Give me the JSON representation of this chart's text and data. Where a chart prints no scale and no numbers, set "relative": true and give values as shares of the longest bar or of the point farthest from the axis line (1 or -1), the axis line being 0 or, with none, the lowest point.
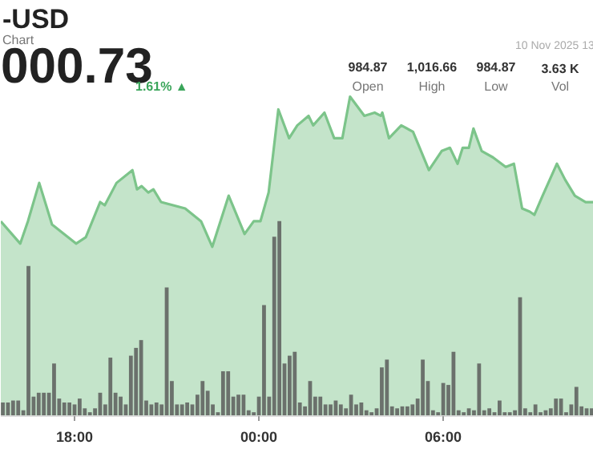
{
  "chart_data": {
    "type": "area",
    "title": "-USD",
    "subtitle": "Chart",
    "annotations": [
      "000.73",
      "1.61% ▲",
      "984.87",
      "Open",
      "1,016.66",
      "High",
      "984.87",
      "Low",
      "3.63 K",
      "Vol",
      "10 Nov 2025 13"
    ],
    "relative": true,
    "xlim": [
      "2025-11-09T15:36",
      "2025-11-10T10:54"
    ],
    "xticks": [
      {
        "value": "2025-11-09T18:00",
        "label": "18:00"
      },
      {
        "value": "2025-11-10T00:00",
        "label": "00:00"
      },
      {
        "value": "2025-11-10T06:00",
        "label": "06:00"
      }
    ],
    "series": [
      {
        "color": "#7cc48a",
        "x": [
          "2025-11-09T15:36",
          "2025-11-09T16:14",
          "2025-11-09T16:29",
          "2025-11-09T16:51",
          "2025-11-09T17:16",
          "2025-11-09T18:03",
          "2025-11-09T18:22",
          "2025-11-09T18:50",
          "2025-11-09T18:59",
          "2025-11-09T19:22",
          "2025-11-09T19:53",
          "2025-11-09T20:02",
          "2025-11-09T20:11",
          "2025-11-09T20:24",
          "2025-11-09T20:34",
          "2025-11-09T20:49",
          "2025-11-09T21:36",
          "2025-11-09T22:07",
          "2025-11-09T22:29",
          "2025-11-09T23:01",
          "2025-11-09T23:32",
          "2025-11-09T23:50",
          "2025-11-10T00:03",
          "2025-11-10T00:19",
          "2025-11-10T00:38",
          "2025-11-10T00:59",
          "2025-11-10T01:15",
          "2025-11-10T01:37",
          "2025-11-10T01:46",
          "2025-11-10T02:08",
          "2025-11-10T02:27",
          "2025-11-10T02:43",
          "2025-11-10T02:58",
          "2025-11-10T03:26",
          "2025-11-10T03:46",
          "2025-11-10T03:58",
          "2025-11-10T04:01",
          "2025-11-10T04:14",
          "2025-11-10T04:38",
          "2025-11-10T05:01",
          "2025-11-10T05:32",
          "2025-11-10T05:57",
          "2025-11-10T06:13",
          "2025-11-10T06:28",
          "2025-11-10T06:38",
          "2025-11-10T06:50",
          "2025-11-10T06:59",
          "2025-11-10T07:15",
          "2025-11-10T07:37",
          "2025-11-10T08:02",
          "2025-11-10T08:18",
          "2025-11-10T08:34",
          "2025-11-10T08:49",
          "2025-11-10T08:58",
          "2025-11-10T09:14",
          "2025-11-10T09:42",
          "2025-11-10T09:58",
          "2025-11-10T10:17",
          "2025-11-10T10:38",
          "2025-11-10T10:54"
        ],
        "values": [
          0.61,
          0.54,
          0.61,
          0.73,
          0.6,
          0.54,
          0.56,
          0.67,
          0.66,
          0.73,
          0.77,
          0.71,
          0.72,
          0.7,
          0.71,
          0.67,
          0.65,
          0.61,
          0.53,
          0.69,
          0.57,
          0.61,
          0.61,
          0.7,
          0.96,
          0.87,
          0.91,
          0.94,
          0.91,
          0.95,
          0.87,
          0.87,
          1,
          0.94,
          0.95,
          0.94,
          0.95,
          0.87,
          0.91,
          0.89,
          0.77,
          0.83,
          0.84,
          0.79,
          0.84,
          0.84,
          0.9,
          0.83,
          0.81,
          0.78,
          0.79,
          0.65,
          0.64,
          0.63,
          0.69,
          0.79,
          0.74,
          0.69,
          0.67,
          0.67
        ]
      },
      {
        "type": "bar",
        "axis": "y2",
        "color": "#6b716c",
        "x": [
          "2025-11-09T15:40",
          "2025-11-09T15:50",
          "2025-11-09T16:00",
          "2025-11-09T16:10",
          "2025-11-09T16:20",
          "2025-11-09T16:30",
          "2025-11-09T16:40",
          "2025-11-09T16:50",
          "2025-11-09T17:00",
          "2025-11-09T17:10",
          "2025-11-09T17:20",
          "2025-11-09T17:30",
          "2025-11-09T17:40",
          "2025-11-09T17:50",
          "2025-11-09T18:00",
          "2025-11-09T18:10",
          "2025-11-09T18:20",
          "2025-11-09T18:30",
          "2025-11-09T18:40",
          "2025-11-09T18:50",
          "2025-11-09T19:00",
          "2025-11-09T19:10",
          "2025-11-09T19:20",
          "2025-11-09T19:30",
          "2025-11-09T19:40",
          "2025-11-09T19:50",
          "2025-11-09T20:00",
          "2025-11-09T20:10",
          "2025-11-09T20:20",
          "2025-11-09T20:30",
          "2025-11-09T20:40",
          "2025-11-09T20:50",
          "2025-11-09T21:00",
          "2025-11-09T21:10",
          "2025-11-09T21:20",
          "2025-11-09T21:30",
          "2025-11-09T21:40",
          "2025-11-09T21:50",
          "2025-11-09T22:00",
          "2025-11-09T22:10",
          "2025-11-09T22:20",
          "2025-11-09T22:30",
          "2025-11-09T22:40",
          "2025-11-09T22:50",
          "2025-11-09T23:00",
          "2025-11-09T23:10",
          "2025-11-09T23:20",
          "2025-11-09T23:30",
          "2025-11-09T23:40",
          "2025-11-09T23:50",
          "2025-11-10T00:00",
          "2025-11-10T00:10",
          "2025-11-10T00:20",
          "2025-11-10T00:30",
          "2025-11-10T00:40",
          "2025-11-10T00:50",
          "2025-11-10T01:00",
          "2025-11-10T01:10",
          "2025-11-10T01:20",
          "2025-11-10T01:30",
          "2025-11-10T01:40",
          "2025-11-10T01:50",
          "2025-11-10T02:00",
          "2025-11-10T02:10",
          "2025-11-10T02:20",
          "2025-11-10T02:30",
          "2025-11-10T02:40",
          "2025-11-10T02:50",
          "2025-11-10T03:00",
          "2025-11-10T03:10",
          "2025-11-10T03:20",
          "2025-11-10T03:30",
          "2025-11-10T03:40",
          "2025-11-10T03:50",
          "2025-11-10T04:00",
          "2025-11-10T04:10",
          "2025-11-10T04:20",
          "2025-11-10T04:30",
          "2025-11-10T04:40",
          "2025-11-10T04:50",
          "2025-11-10T05:00",
          "2025-11-10T05:10",
          "2025-11-10T05:20",
          "2025-11-10T05:30",
          "2025-11-10T05:40",
          "2025-11-10T05:50",
          "2025-11-10T06:00",
          "2025-11-10T06:10",
          "2025-11-10T06:20",
          "2025-11-10T06:30",
          "2025-11-10T06:40",
          "2025-11-10T06:50",
          "2025-11-10T07:00",
          "2025-11-10T07:10",
          "2025-11-10T07:20",
          "2025-11-10T07:30",
          "2025-11-10T07:40",
          "2025-11-10T07:50",
          "2025-11-10T08:00",
          "2025-11-10T08:10",
          "2025-11-10T08:20",
          "2025-11-10T08:30",
          "2025-11-10T08:40",
          "2025-11-10T08:50",
          "2025-11-10T09:00",
          "2025-11-10T09:10",
          "2025-11-10T09:20",
          "2025-11-10T09:30",
          "2025-11-10T09:40",
          "2025-11-10T09:50",
          "2025-11-10T10:00",
          "2025-11-10T10:10",
          "2025-11-10T10:20",
          "2025-11-10T10:30",
          "2025-11-10T10:40",
          "2025-11-10T10:50"
        ],
        "values": [
          0.07,
          0.07,
          0.08,
          0.08,
          0.03,
          0.77,
          0.1,
          0.12,
          0.12,
          0.12,
          0.27,
          0.09,
          0.07,
          0.07,
          0.06,
          0.09,
          0.04,
          0.02,
          0.04,
          0.12,
          0.06,
          0.3,
          0.12,
          0.1,
          0.06,
          0.31,
          0.35,
          0.39,
          0.08,
          0.06,
          0.07,
          0.06,
          0.66,
          0.18,
          0.06,
          0.06,
          0.07,
          0.06,
          0.11,
          0.18,
          0.13,
          0.06,
          0.02,
          0.23,
          0.23,
          0.1,
          0.11,
          0.11,
          0.03,
          0.02,
          0.1,
          0.57,
          0.1,
          0.92,
          1,
          0.27,
          0.31,
          0.33,
          0.07,
          0.05,
          0.18,
          0.1,
          0.1,
          0.06,
          0.06,
          0.08,
          0.06,
          0.04,
          0.11,
          0.06,
          0.07,
          0.03,
          0.02,
          0.04,
          0.25,
          0.29,
          0.05,
          0.04,
          0.05,
          0.05,
          0.06,
          0.09,
          0.29,
          0.18,
          0.03,
          0.02,
          0.17,
          0.16,
          0.33,
          0.03,
          0.02,
          0.04,
          0.03,
          0.27,
          0.03,
          0.04,
          0.02,
          0.08,
          0.02,
          0.02,
          0.03,
          0.61,
          0.04,
          0.02,
          0.06,
          0.02,
          0.03,
          0.04,
          0.09,
          0.09,
          0.02,
          0.06,
          0.15,
          0.05,
          0.04,
          0.04
        ]
      }
    ]
  }
}
